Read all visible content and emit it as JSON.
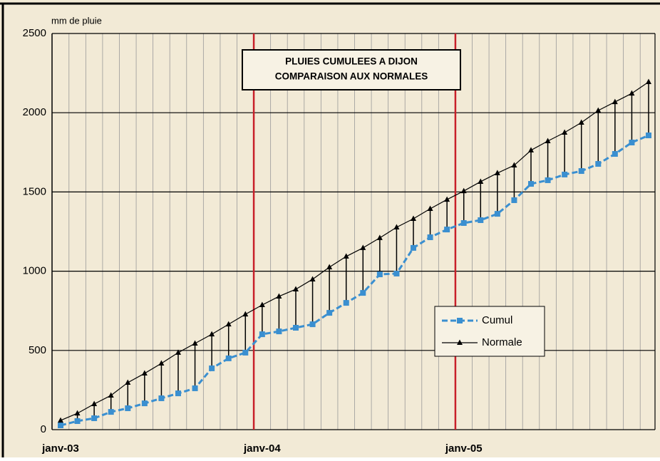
{
  "chart_data": {
    "type": "line",
    "title": "PLUIES CUMULEES A DIJON",
    "subtitle": "COMPARAISON AUX NORMALES",
    "y_label": "mm de pluie",
    "categories": [
      "janv-03",
      null,
      null,
      null,
      null,
      null,
      null,
      null,
      null,
      null,
      null,
      null,
      "janv-04",
      null,
      null,
      null,
      null,
      null,
      null,
      null,
      null,
      null,
      null,
      null,
      "janv-05",
      null,
      null,
      null,
      null,
      null,
      null,
      null,
      null,
      null,
      null,
      null
    ],
    "series": [
      {
        "name": "Cumul",
        "color": "#3a8fd0",
        "marker": "square",
        "values": [
          27,
          54,
          72,
          112,
          135,
          166,
          198,
          229,
          261,
          387,
          450,
          486,
          602,
          620,
          643,
          665,
          737,
          800,
          863,
          980,
          985,
          1147,
          1214,
          1263,
          1304,
          1322,
          1362,
          1448,
          1551,
          1574,
          1610,
          1632,
          1677,
          1740,
          1812,
          1857
        ]
      },
      {
        "name": "Normale",
        "color": "#000000",
        "marker": "triangle",
        "values": [
          58,
          103,
          162,
          216,
          297,
          355,
          418,
          486,
          544,
          602,
          665,
          728,
          787,
          841,
          886,
          949,
          1025,
          1093,
          1147,
          1210,
          1277,
          1331,
          1394,
          1452,
          1506,
          1565,
          1619,
          1668,
          1763,
          1821,
          1875,
          1938,
          2014,
          2068,
          2122,
          2194
        ]
      }
    ],
    "ylim": [
      0,
      2500
    ],
    "yticks": [
      0,
      500,
      1000,
      1500,
      2000,
      2500
    ],
    "grid": true,
    "legend": "lower right"
  }
}
